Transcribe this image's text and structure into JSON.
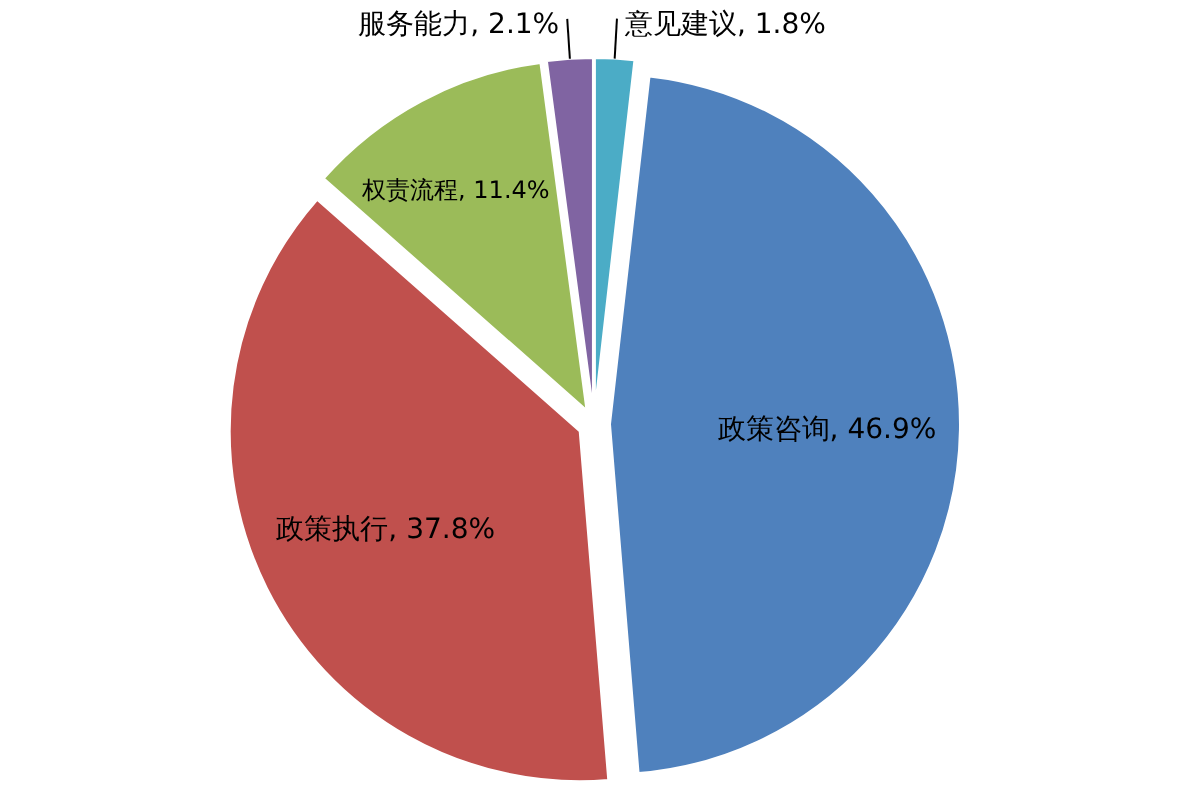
{
  "chart_data": {
    "type": "pie",
    "categories": [
      "意见建议",
      "政策咨询",
      "政策执行",
      "权责流程",
      "服务能力"
    ],
    "values": [
      1.8,
      46.9,
      37.8,
      11.4,
      2.1
    ],
    "value_labels": [
      "1.8%",
      "46.9%",
      "37.8%",
      "11.4%",
      "2.1%"
    ],
    "colors": [
      "#4bacc6",
      "#4f81bd",
      "#c0504d",
      "#9bbb59",
      "#8064a2"
    ]
  }
}
